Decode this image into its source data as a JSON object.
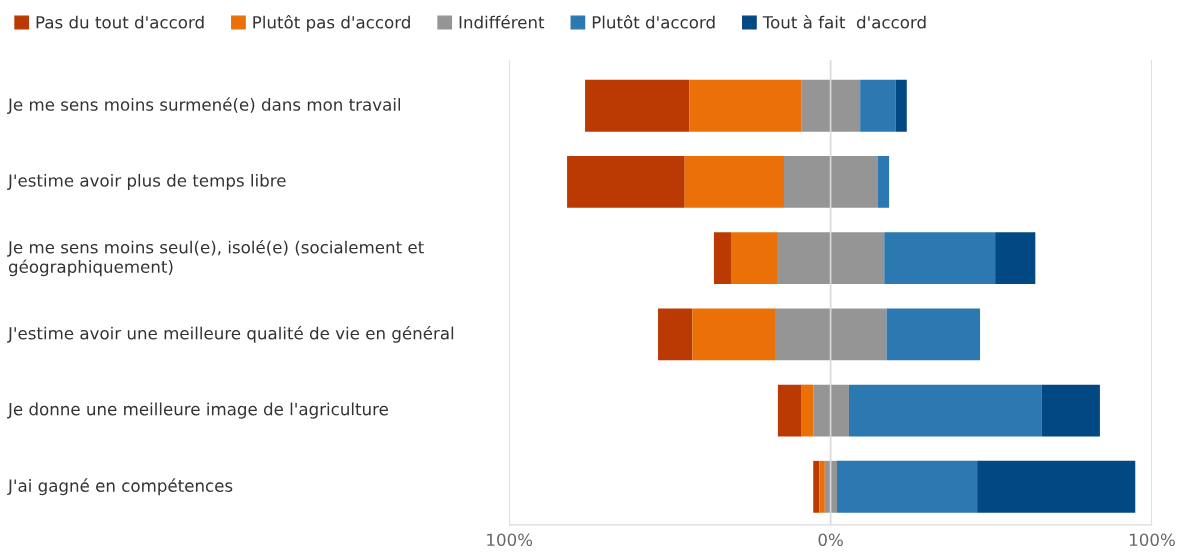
{
  "chart_data": {
    "type": "bar",
    "orientation": "horizontal",
    "categories": [
      "Je me sens moins surmené(e) dans mon travail",
      "J'estime avoir plus de temps libre",
      "Je me sens moins seul(e), isolé(e) (socialement et\ngéographiquement)",
      "J'estime avoir une meilleure qualité de vie en général",
      "Je donne une meilleure image de l'agriculture",
      "J'ai gagné en compétences"
    ],
    "series": [
      {
        "name": "Pas du tout d'accord",
        "color": "#bb3a03",
        "base": [
          -76.4,
          -82.0,
          -36.3,
          -53.7,
          -16.4,
          -5.4
        ],
        "values": [
          32.5,
          36.6,
          5.3,
          10.7,
          7.4,
          1.9
        ]
      },
      {
        "name": "Plutôt pas d'accord",
        "color": "#eb7007",
        "base": [
          -43.9,
          -45.4,
          -31.0,
          -43.0,
          -9.0,
          -3.5
        ],
        "values": [
          34.9,
          30.9,
          14.6,
          25.7,
          3.6,
          1.7
        ]
      },
      {
        "name": "Indifférent",
        "color": "#959595",
        "base": [
          -9.0,
          -14.5,
          -16.4,
          -17.3,
          -5.4,
          -1.8
        ],
        "values": [
          18.2,
          29.2,
          33.1,
          34.7,
          11.1,
          3.8
        ]
      },
      {
        "name": "Plutôt d'accord",
        "color": "#2b79b0",
        "base": [
          9.2,
          14.7,
          16.7,
          17.4,
          5.7,
          2.0
        ],
        "values": [
          11.0,
          3.5,
          34.5,
          29.1,
          59.9,
          43.6
        ]
      },
      {
        "name": "Tout à fait  d'accord",
        "color": "#024882",
        "base": [
          20.2,
          null,
          51.2,
          null,
          65.6,
          45.6
        ],
        "values": [
          3.5,
          null,
          12.5,
          null,
          18.2,
          49.2
        ]
      }
    ],
    "xlim": [
      -100,
      100
    ],
    "xticks": [
      {
        "value": -100,
        "label": "100%"
      },
      {
        "value": 0,
        "label": "0%"
      },
      {
        "value": 100,
        "label": "100%"
      }
    ],
    "grid": "x",
    "legend": "top"
  }
}
